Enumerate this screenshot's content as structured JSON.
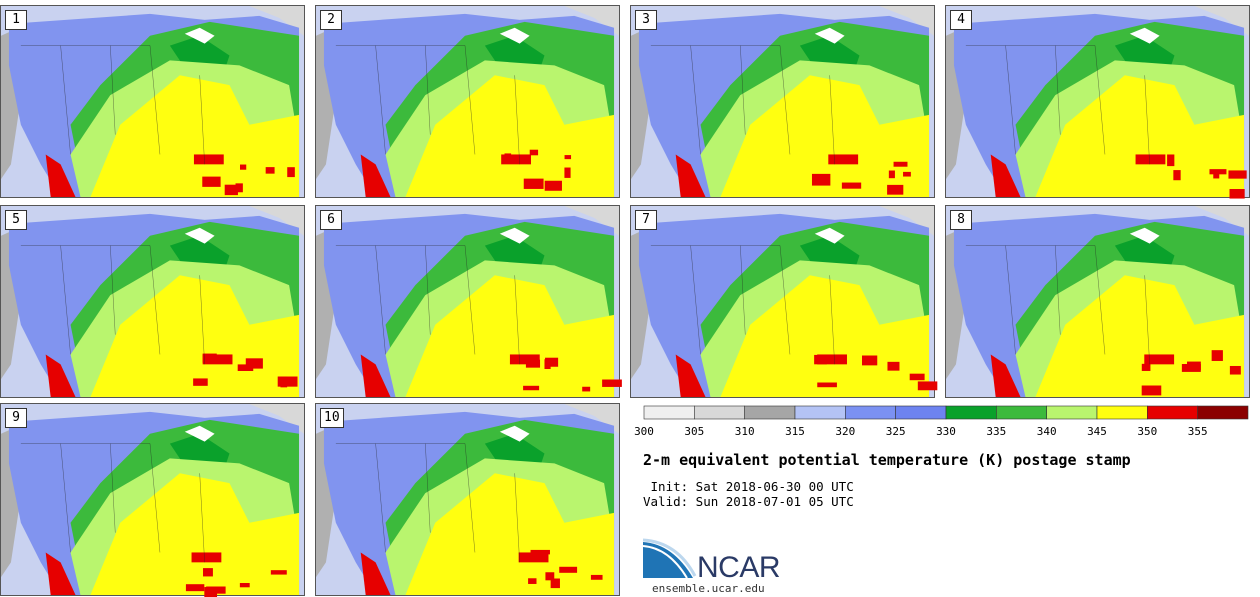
{
  "panels": [
    {
      "label": "1"
    },
    {
      "label": "2"
    },
    {
      "label": "3"
    },
    {
      "label": "4"
    },
    {
      "label": "5"
    },
    {
      "label": "6"
    },
    {
      "label": "7"
    },
    {
      "label": "8"
    },
    {
      "label": "9"
    },
    {
      "label": "10"
    }
  ],
  "colorbar": {
    "ticks": [
      "300",
      "305",
      "310",
      "315",
      "320",
      "325",
      "330",
      "335",
      "340",
      "345",
      "350",
      "355"
    ],
    "colors": [
      "#efefef",
      "#d8d8d8",
      "#a6a6a6",
      "#b4c3f5",
      "#7b91f2",
      "#6d83f0",
      "#0aa12b",
      "#3cba3c",
      "#b9f56e",
      "#ffff10",
      "#e60000",
      "#8b0000"
    ]
  },
  "title": "2-m equivalent potential temperature (K) postage stamp",
  "init": " Init: Sat 2018-06-30 00 UTC",
  "valid": "Valid: Sun 2018-07-01 05 UTC",
  "logo": {
    "name": "NCAR",
    "site": "ensemble.ucar.edu"
  },
  "colors": {
    "ocean": "#c9d2f0",
    "land_gray": "#b0b0b0",
    "cold": "#8194ef",
    "green_dark": "#0aa12b",
    "green": "#3cba3c",
    "lime": "#b9f56e",
    "yellow": "#ffff10",
    "red": "#e60000"
  }
}
